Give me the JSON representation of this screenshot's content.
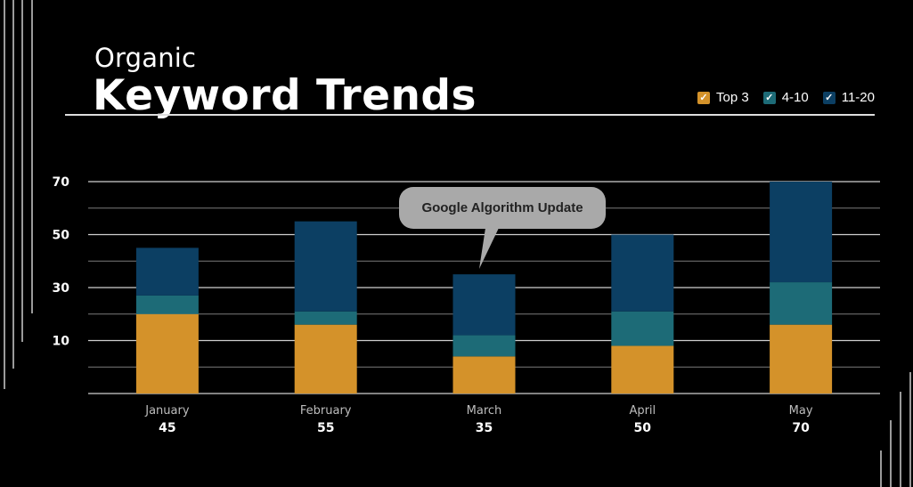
{
  "header": {
    "subtitle": "Organic",
    "title": "Keyword Trends"
  },
  "legend": [
    {
      "label": "Top 3",
      "color": "#D4922A"
    },
    {
      "label": "4-10",
      "color": "#1D6B77"
    },
    {
      "label": "11-20",
      "color": "#0C3F63"
    }
  ],
  "annotation": {
    "text": "Google Algorithm Update",
    "category": "March"
  },
  "chart_data": {
    "type": "bar",
    "stacked": true,
    "categories": [
      "January",
      "February",
      "March",
      "April",
      "May"
    ],
    "totals": [
      "45",
      "55",
      "35",
      "50",
      "70"
    ],
    "yticks": [
      "10",
      "30",
      "50",
      "70"
    ],
    "ylim": [
      -10,
      70
    ],
    "grid": true,
    "legend_position": "top-right",
    "series": [
      {
        "name": "Top 3",
        "color": "#D4922A",
        "values": [
          20,
          16,
          4,
          8,
          16
        ]
      },
      {
        "name": "4-10",
        "color": "#1D6B77",
        "values": [
          7,
          5,
          8,
          13,
          16
        ]
      },
      {
        "name": "11-20",
        "color": "#0C3F63",
        "values": [
          18,
          34,
          23,
          29,
          38
        ]
      }
    ]
  }
}
